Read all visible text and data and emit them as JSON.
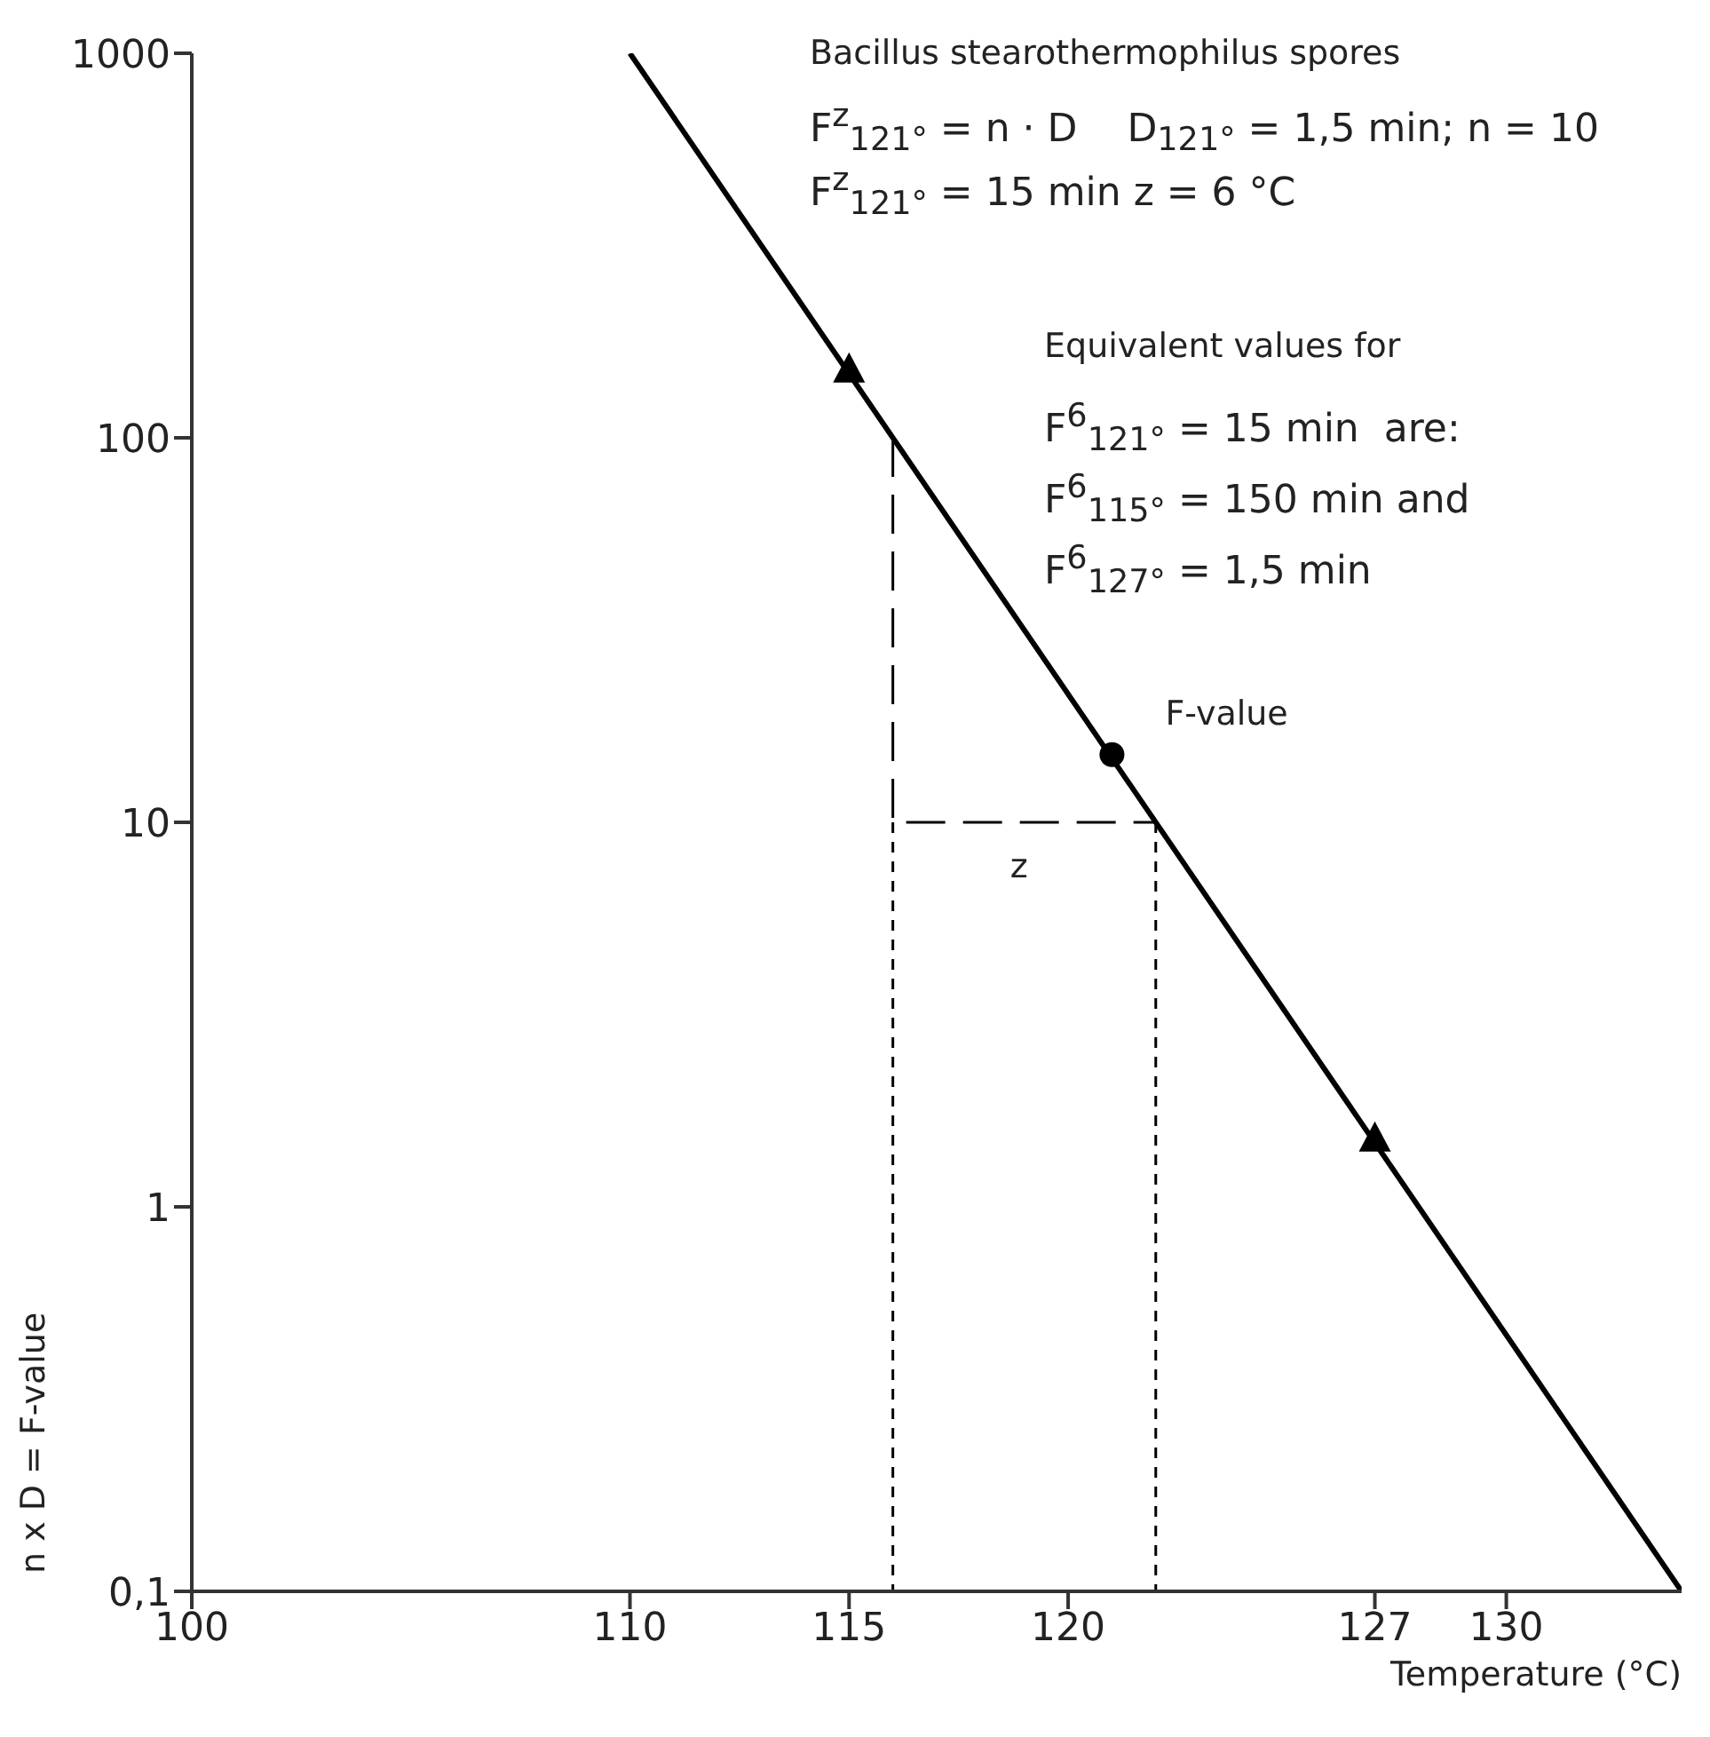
{
  "chart_data": {
    "type": "line",
    "xlabel": "Temperature (°C)",
    "ylabel": "n x D = F-value",
    "log": "y",
    "xlim": [
      100,
      134
    ],
    "xticks": [
      100,
      110,
      115,
      120,
      127,
      130
    ],
    "ylim": [
      0.1,
      1000
    ],
    "yticks": [
      {
        "value": 0.1,
        "label": "0,1"
      },
      1,
      10,
      100,
      1000
    ],
    "series": [
      {
        "type": "line",
        "color": "#000000",
        "x": [
          110,
          134
        ],
        "values": [
          1000,
          0.1
        ],
        "marker": "none",
        "line_style": "solid"
      },
      {
        "type": "line",
        "color": "#000000",
        "x": [
          116,
          116,
          122
        ],
        "values": [
          100,
          10,
          10
        ],
        "marker": "none",
        "line_style": "dashed"
      },
      {
        "type": "line",
        "color": "#000000",
        "x": [
          116,
          116
        ],
        "values": [
          10,
          0.1
        ],
        "marker": "none",
        "line_style": "dotted"
      },
      {
        "type": "line",
        "color": "#000000",
        "x": [
          122,
          122
        ],
        "values": [
          10,
          0.1
        ],
        "marker": "none",
        "line_style": "dotted"
      },
      {
        "type": "scatter",
        "color": "#000000",
        "x": [
          115,
          127
        ],
        "values": [
          150,
          1.5
        ],
        "marker": "triangle"
      },
      {
        "type": "scatter",
        "color": "#000000",
        "x": [
          121
        ],
        "values": [
          15
        ],
        "marker": "circle"
      }
    ],
    "annotations": [
      "Bacillus stearothermophilus spores",
      "F$^{z}$$_{121°}$ = n · D    D$_{121°}$ = 1,5 min; n = 10",
      "F$^{z}$$_{121°}$ = 15 min z = 6 °C",
      "Equivalent values for",
      "F$^{6}$$_{121°}$ = 15 min  are:",
      "F$^{6}$$_{115°}$ = 150 min and",
      "F$^{6}$$_{127°}$ = 1,5 min",
      {
        "text": "F-value",
        "x": 121,
        "y": 15
      },
      {
        "text": "z",
        "x": 119,
        "y": 10
      }
    ]
  }
}
